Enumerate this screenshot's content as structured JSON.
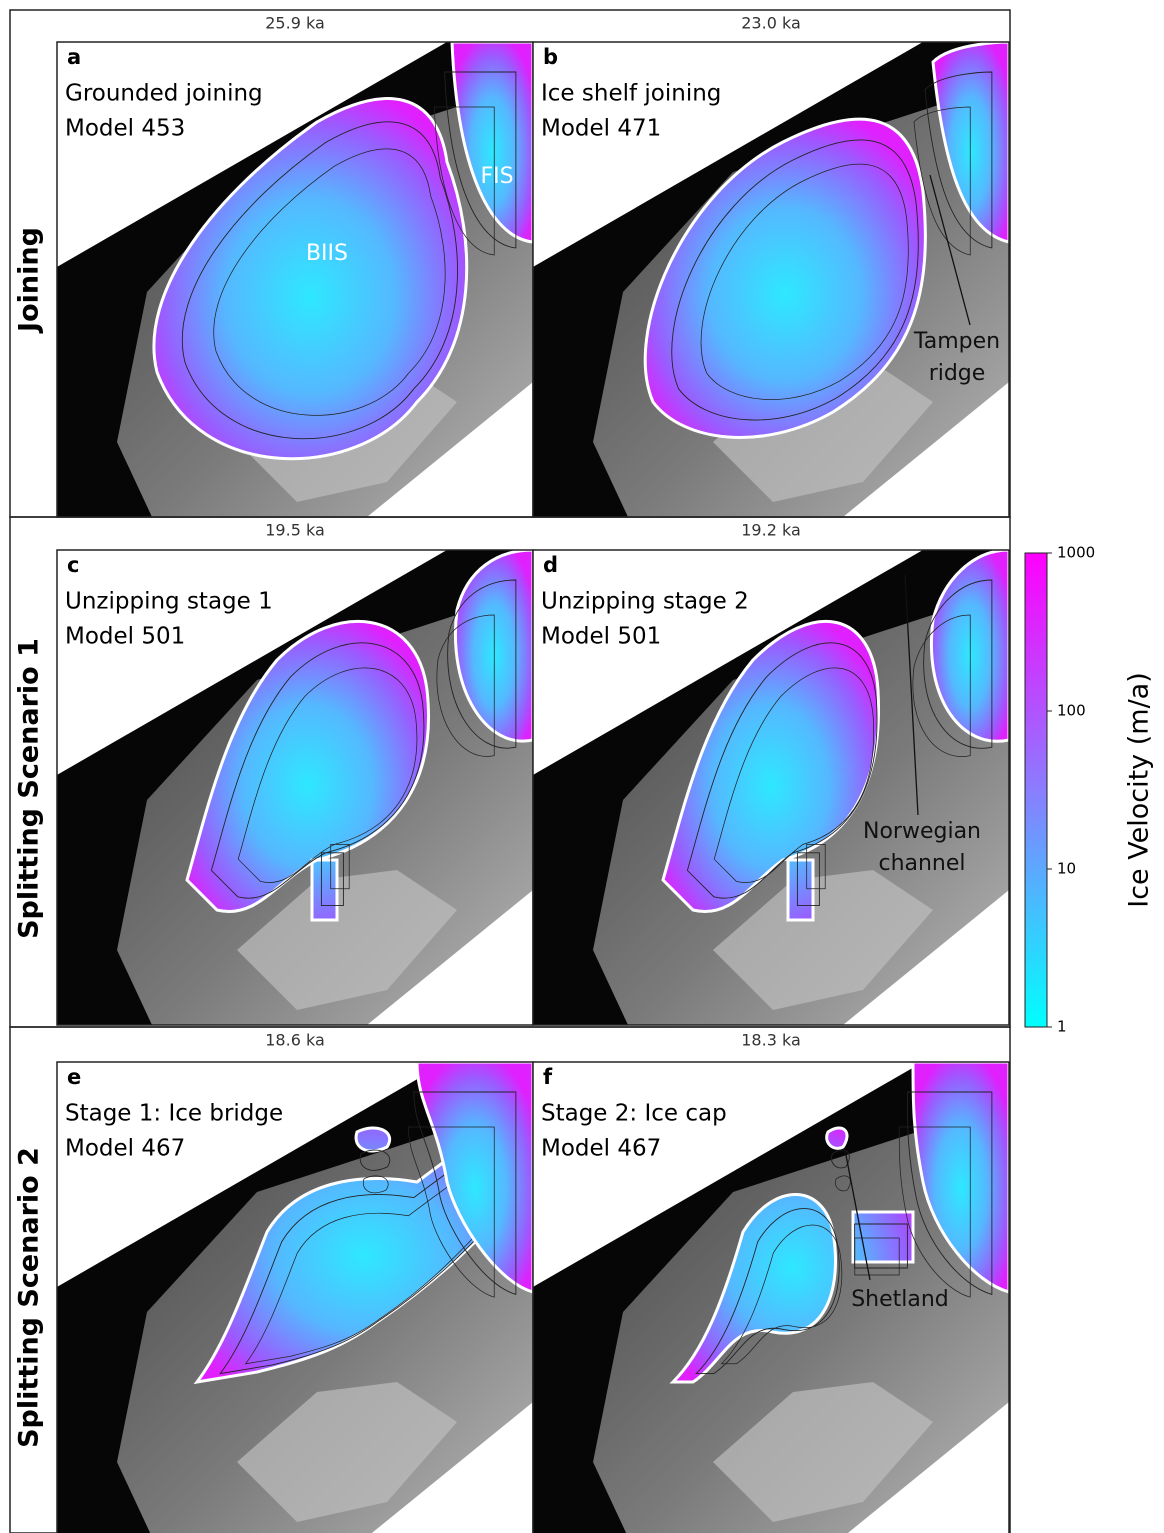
{
  "rows": [
    {
      "label": "Joining",
      "panels": [
        {
          "time": "25.9 ka",
          "letter": "a",
          "lines": [
            "Grounded joining",
            "Model 453"
          ],
          "annotations": [
            {
              "lines": [
                "BIIS"
              ]
            },
            {
              "lines": [
                "FIS"
              ]
            }
          ]
        },
        {
          "time": "23.0 ka",
          "letter": "b",
          "lines": [
            "Ice shelf joining",
            "Model 471"
          ],
          "annotations": [
            {
              "lines": [
                "Tampen",
                "ridge"
              ]
            }
          ]
        }
      ]
    },
    {
      "label": "Splitting Scenario 1",
      "panels": [
        {
          "time": "19.5 ka",
          "letter": "c",
          "lines": [
            "Unzipping stage 1",
            "Model 501"
          ],
          "annotations": []
        },
        {
          "time": "19.2 ka",
          "letter": "d",
          "lines": [
            "Unzipping stage 2",
            "Model 501"
          ],
          "annotations": [
            {
              "lines": [
                "Norwegian",
                "channel"
              ]
            }
          ]
        }
      ]
    },
    {
      "label": "Splitting Scenario 2",
      "panels": [
        {
          "time": "18.6 ka",
          "letter": "e",
          "lines": [
            "Stage 1: Ice bridge",
            "Model 467"
          ],
          "annotations": []
        },
        {
          "time": "18.3 ka",
          "letter": "f",
          "lines": [
            "Stage 2: Ice cap",
            "Model 467"
          ],
          "annotations": [
            {
              "lines": [
                "Shetland"
              ]
            }
          ]
        }
      ]
    }
  ],
  "colorbar": {
    "label": "Ice Velocity (m/a)",
    "scale": "log",
    "lim": [
      1,
      1000
    ],
    "ticks": [
      1,
      10,
      100,
      1000
    ],
    "colors": [
      "#00ffff",
      "#8a7dff",
      "#ff00ff"
    ]
  }
}
